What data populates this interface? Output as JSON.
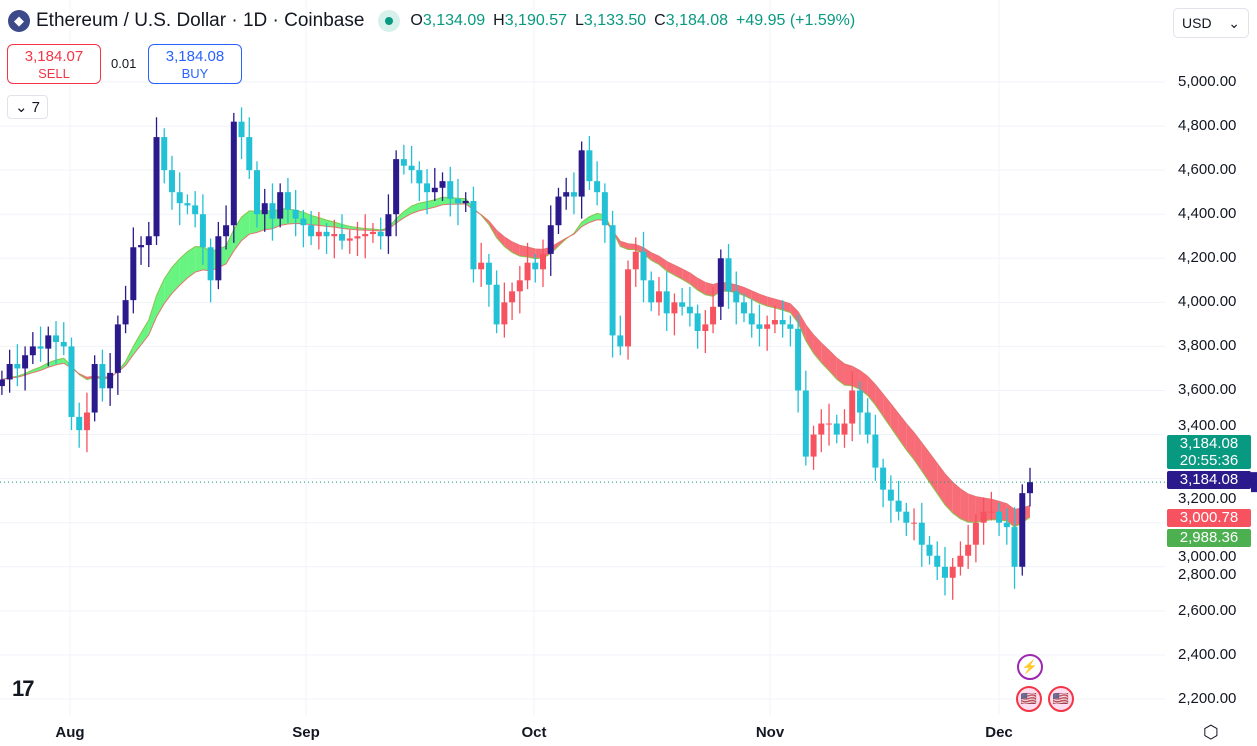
{
  "header": {
    "title": "Ethereum / U.S. Dollar · 1D · Coinbase",
    "open_label": "O",
    "open": "3,134.09",
    "high_label": "H",
    "high": "3,190.57",
    "low_label": "L",
    "low": "3,133.50",
    "close_label": "C",
    "close": "3,184.08",
    "change": "+49.95 (+1.59%)"
  },
  "trade": {
    "sell_price": "3,184.07",
    "sell_label": "SELL",
    "spread": "0.01",
    "buy_price": "3,184.08",
    "buy_label": "BUY"
  },
  "indicators_count": "7",
  "currency": "USD",
  "price_axis": [
    "5,000.00",
    "4,800.00",
    "4,600.00",
    "4,400.00",
    "4,200.00",
    "4,000.00",
    "3,800.00",
    "3,600.00",
    "3,400.00",
    "3,200.00",
    "3,000.00",
    "2,800.00",
    "2,600.00",
    "2,400.00",
    "2,200.00"
  ],
  "time_axis": [
    "Aug",
    "Sep",
    "Oct",
    "Nov",
    "Dec"
  ],
  "labels": {
    "last_price": "3,184.08",
    "countdown": "20:55:36",
    "current_price": "3,184.08",
    "ma_upper": "3,000.78",
    "ma_lower": "2,988.36"
  },
  "colors": {
    "up": "#2b1a8c",
    "down": "#22c1d6",
    "up_below": "#f7525f",
    "ribbon_bull": "#4cf26a",
    "ribbon_bear": "#f7525f",
    "last": "#089981"
  },
  "chart_data": {
    "type": "candlestick",
    "start_date": "Jul 23",
    "interval": "1D",
    "ylim": [
      2150,
      5100
    ],
    "closes": [
      3650,
      3720,
      3700,
      3760,
      3800,
      3790,
      3850,
      3820,
      3800,
      3480,
      3420,
      3500,
      3720,
      3610,
      3680,
      3900,
      4010,
      4250,
      4260,
      4300,
      4750,
      4600,
      4500,
      4450,
      4440,
      4400,
      4250,
      4100,
      4300,
      4350,
      4820,
      4750,
      4600,
      4400,
      4450,
      4380,
      4500,
      4420,
      4380,
      4350,
      4300,
      4320,
      4300,
      4310,
      4280,
      4290,
      4300,
      4310,
      4320,
      4300,
      4400,
      4650,
      4620,
      4600,
      4540,
      4500,
      4520,
      4550,
      4470,
      4450,
      4460,
      4150,
      4180,
      4080,
      3900,
      4000,
      4050,
      4100,
      4180,
      4150,
      4220,
      4350,
      4480,
      4500,
      4480,
      4690,
      4550,
      4500,
      4350,
      3850,
      3800,
      4150,
      4230,
      4100,
      4000,
      4050,
      3950,
      4000,
      3980,
      3950,
      3870,
      3900,
      3980,
      4200,
      4050,
      4000,
      3950,
      3900,
      3880,
      3900,
      3920,
      3900,
      3880,
      3600,
      3300,
      3400,
      3450,
      3450,
      3400,
      3450,
      3600,
      3500,
      3400,
      3250,
      3150,
      3100,
      3050,
      3000,
      3000,
      2900,
      2850,
      2800,
      2750,
      2800,
      2850,
      2900,
      3000,
      3050,
      3050,
      3000,
      2980,
      2800,
      3134.09,
      3184.08
    ]
  }
}
